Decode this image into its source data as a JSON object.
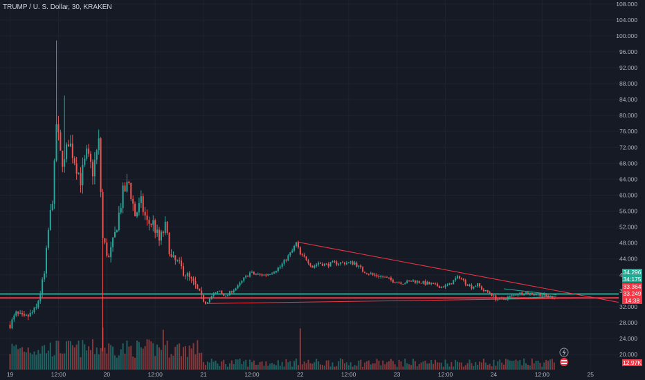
{
  "header": {
    "title": "TRUMP / U. S. Dollar, 30, KRAKEN"
  },
  "colors": {
    "background": "#161a25",
    "grid": "#1f2330",
    "up": "#26a69a",
    "down": "#ef5350",
    "trendline": "#f23645",
    "support_line": "#22ab94",
    "axis_text": "#b2b5be"
  },
  "chart_data": {
    "type": "candlestick",
    "symbol": "TRUMP / U. S. Dollar",
    "interval": "30",
    "exchange": "KRAKEN",
    "y_ticks": [
      20,
      24,
      28,
      32,
      36,
      40,
      44,
      48,
      52,
      56,
      60,
      64,
      68,
      72,
      76,
      80,
      84,
      88,
      92,
      96,
      100,
      104,
      108
    ],
    "y_tick_labels": [
      "20.000",
      "24.000",
      "28.000",
      "32.000",
      "36.000",
      "40.000",
      "44.000",
      "48.000",
      "52.000",
      "56.000",
      "60.000",
      "64.000",
      "68.000",
      "72.000",
      "76.000",
      "80.000",
      "84.000",
      "88.000",
      "92.000",
      "96.000",
      "100.000",
      "104.000",
      "108.000"
    ],
    "ylim": [
      16.2,
      109
    ],
    "x_ticks": [
      {
        "label": "19",
        "t": 0
      },
      {
        "label": "12:00",
        "t": 12
      },
      {
        "label": "20",
        "t": 24
      },
      {
        "label": "12:00",
        "t": 36
      },
      {
        "label": "21",
        "t": 48
      },
      {
        "label": "12:00",
        "t": 60
      },
      {
        "label": "22",
        "t": 72
      },
      {
        "label": "12:00",
        "t": 84
      },
      {
        "label": "23",
        "t": 96
      },
      {
        "label": "12:00",
        "t": 108
      },
      {
        "label": "24",
        "t": 120
      },
      {
        "label": "12:00",
        "t": 132
      },
      {
        "label": "25",
        "t": 144
      }
    ],
    "xlim": [
      -2.5,
      151
    ],
    "price_path": [
      [
        0.0,
        27.5
      ],
      [
        1.5,
        30.2
      ],
      [
        3.5,
        29.0
      ],
      [
        5.0,
        30.0
      ],
      [
        6.5,
        31.5
      ],
      [
        8.5,
        40.0
      ],
      [
        9.5,
        51.0
      ],
      [
        10.8,
        62.0
      ],
      [
        11.5,
        78.0
      ],
      [
        12.5,
        70.0
      ],
      [
        13.5,
        68.0
      ],
      [
        14.5,
        74.0
      ],
      [
        16.0,
        69.0
      ],
      [
        17.5,
        64.0
      ],
      [
        19.0,
        70.0
      ],
      [
        20.5,
        66.0
      ],
      [
        22.0,
        73.0
      ],
      [
        23.0,
        49.0
      ],
      [
        24.5,
        44.0
      ],
      [
        26.0,
        50.0
      ],
      [
        28.0,
        60.5
      ],
      [
        29.5,
        63.0
      ],
      [
        31.0,
        55.0
      ],
      [
        32.5,
        58.0
      ],
      [
        34.0,
        53.0
      ],
      [
        35.5,
        53.0
      ],
      [
        37.0,
        48.5
      ],
      [
        38.5,
        52.0
      ],
      [
        40.0,
        44.0
      ],
      [
        41.5,
        43.0
      ],
      [
        43.0,
        41.0
      ],
      [
        44.5,
        39.0
      ],
      [
        46.0,
        37.0
      ],
      [
        47.5,
        34.0
      ],
      [
        48.5,
        33.0
      ],
      [
        50.5,
        35.0
      ],
      [
        52.0,
        36.0
      ],
      [
        53.5,
        34.5
      ],
      [
        55.0,
        36.0
      ],
      [
        56.5,
        37.0
      ],
      [
        58.0,
        39.0
      ],
      [
        59.5,
        40.5
      ],
      [
        61.5,
        40.0
      ],
      [
        63.5,
        40.0
      ],
      [
        65.5,
        41.0
      ],
      [
        67.0,
        42.0
      ],
      [
        68.5,
        44.0
      ],
      [
        70.0,
        46.0
      ],
      [
        71.0,
        48.0
      ],
      [
        72.0,
        45.0
      ],
      [
        73.5,
        44.0
      ],
      [
        75.0,
        42.0
      ],
      [
        76.5,
        43.0
      ],
      [
        78.5,
        42.5
      ],
      [
        80.5,
        43.0
      ],
      [
        83.0,
        43.0
      ],
      [
        85.5,
        43.0
      ],
      [
        87.5,
        41.0
      ],
      [
        90.0,
        40.0
      ],
      [
        92.5,
        39.5
      ],
      [
        95.0,
        38.5
      ],
      [
        97.5,
        38.0
      ],
      [
        100.0,
        38.5
      ],
      [
        102.5,
        38.0
      ],
      [
        105.0,
        37.5
      ],
      [
        107.0,
        37.0
      ],
      [
        109.0,
        37.5
      ],
      [
        110.5,
        39.0
      ],
      [
        111.5,
        39.5
      ],
      [
        113.0,
        38.0
      ],
      [
        114.5,
        37.0
      ],
      [
        116.0,
        37.5
      ],
      [
        117.5,
        36.0
      ],
      [
        119.0,
        35.5
      ],
      [
        120.5,
        34.0
      ],
      [
        122.0,
        33.8
      ],
      [
        124.0,
        34.5
      ],
      [
        126.0,
        35.3
      ],
      [
        128.0,
        35.5
      ],
      [
        130.0,
        35.2
      ],
      [
        132.0,
        35.0
      ],
      [
        134.0,
        34.4
      ],
      [
        135.0,
        34.3
      ]
    ],
    "wick_spikes": [
      {
        "t": 11.5,
        "high": 98.8
      },
      {
        "t": 13.5,
        "high": 85.0
      },
      {
        "t": 23.0,
        "low": 20.8
      }
    ],
    "horizontal_lines": [
      {
        "price": 35.2,
        "color": "#22ab94",
        "label": "support"
      },
      {
        "price": 34.2,
        "color": "#f23645",
        "label": "support"
      }
    ],
    "trendlines": [
      {
        "from": [
          71.5,
          48.2
        ],
        "to": [
          151.0,
          33.1
        ],
        "color": "#f23645"
      },
      {
        "from": [
          49.0,
          32.8
        ],
        "to": [
          151.0,
          34.3
        ],
        "color": "#f23645"
      },
      {
        "from": [
          122.5,
          36.5
        ],
        "to": [
          135.5,
          35.0
        ],
        "color": "#22ab94"
      },
      {
        "from": [
          122.5,
          33.9
        ],
        "to": [
          135.5,
          34.6
        ],
        "color": "#22ab94"
      }
    ],
    "price_badges": [
      {
        "text": "34.296",
        "sub": "34:175",
        "color": "#22ab94"
      },
      {
        "text": "33.364",
        "color": "#f23645"
      },
      {
        "text": "33.249",
        "sub": "14:38",
        "color": "#f23645"
      },
      {
        "text": "12.97K",
        "color": "#f23645"
      }
    ],
    "volume_scale_max": 14000,
    "volume_last": "12.97K",
    "volume_highlights": [
      {
        "t": 23.0,
        "v": 9000
      },
      {
        "t": 38.0,
        "v": 8500
      },
      {
        "t": 71.8,
        "v": 8800
      }
    ]
  }
}
